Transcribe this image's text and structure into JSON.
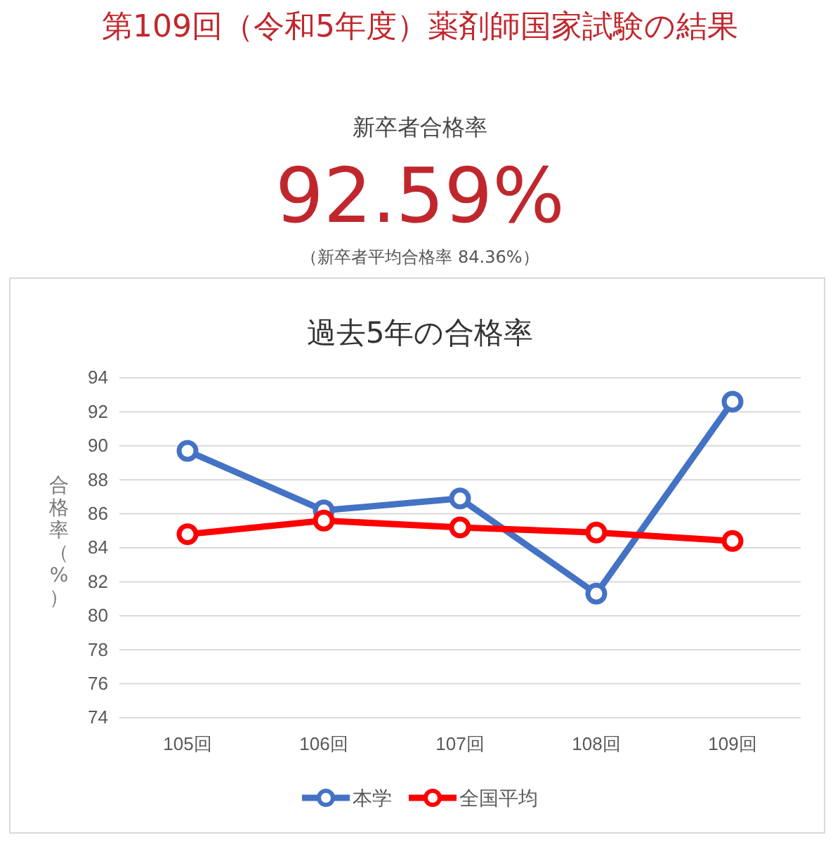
{
  "chart_data": {
    "type": "line",
    "title": "過去5年の合格率",
    "ylabel": "合格率（%）",
    "annotations": [
      "第109回（令和5年度）薬剤師国家試験の結果",
      "新卒者合格率",
      "92.59%",
      "（新卒者平均合格率 84.36%）"
    ],
    "categories": [
      "105回",
      "106回",
      "107回",
      "108回",
      "109回"
    ],
    "series": [
      {
        "name": "本学",
        "color": "#4472c4",
        "values": [
          89.7,
          86.2,
          86.9,
          81.3,
          92.6
        ]
      },
      {
        "name": "全国平均",
        "color": "#ff0000",
        "values": [
          84.8,
          85.6,
          85.2,
          84.9,
          84.4
        ]
      }
    ],
    "ylim": [
      74,
      94
    ],
    "yticks": [
      74,
      76,
      78,
      80,
      82,
      84,
      86,
      88,
      90,
      92,
      94
    ],
    "grid": "y",
    "legend": "bottom",
    "marker": "circle",
    "line_style": "solid"
  }
}
